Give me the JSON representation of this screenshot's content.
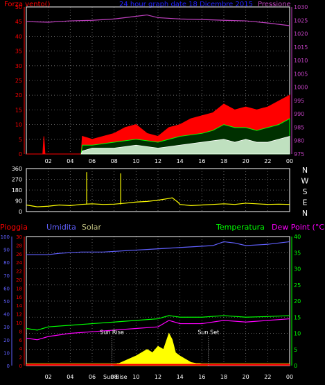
{
  "chart_data": [
    {
      "type": "line",
      "panel": "wind-pressure",
      "title": "24 hour graph date 18 Dicembre 2015",
      "left_label": "Forza vento()",
      "right_label": "Pressione",
      "x_ticks": [
        "02",
        "04",
        "06",
        "08",
        "10",
        "12",
        "14",
        "16",
        "18",
        "20",
        "22",
        "00"
      ],
      "y_left_ticks": [
        0,
        5,
        10,
        15,
        20,
        25,
        30,
        35,
        40,
        45,
        50
      ],
      "y_left_range": [
        0,
        50
      ],
      "y_right_ticks": [
        975,
        980,
        985,
        990,
        995,
        1000,
        1005,
        1010,
        1015,
        1020,
        1025,
        1030
      ],
      "y_right_range": [
        975,
        1030
      ],
      "grid": "dotted",
      "colors": {
        "gust": "#ff0000",
        "wind": "#00ff00",
        "avg": "#ffffff",
        "pressure": "#c040c0",
        "axis": "#ff0000",
        "axis_right": "#c040c0"
      },
      "series": [
        {
          "name": "pressure",
          "points": [
            [
              0,
              1024.5
            ],
            [
              2,
              1024.3
            ],
            [
              4,
              1024.8
            ],
            [
              6,
              1025
            ],
            [
              8,
              1025.5
            ],
            [
              10,
              1026.5
            ],
            [
              11,
              1027
            ],
            [
              12,
              1026
            ],
            [
              14,
              1025.5
            ],
            [
              16,
              1025.3
            ],
            [
              18,
              1025
            ],
            [
              20,
              1024.8
            ],
            [
              22,
              1024
            ],
            [
              24,
              1023
            ]
          ]
        },
        {
          "name": "gust",
          "points": [
            [
              0,
              0
            ],
            [
              1.5,
              0
            ],
            [
              1.6,
              6
            ],
            [
              1.7,
              0
            ],
            [
              5,
              0
            ],
            [
              5.1,
              6
            ],
            [
              6,
              5
            ],
            [
              7,
              6
            ],
            [
              8,
              7
            ],
            [
              9,
              9
            ],
            [
              10,
              10
            ],
            [
              11,
              7
            ],
            [
              12,
              6
            ],
            [
              13,
              9
            ],
            [
              14,
              10
            ],
            [
              15,
              12
            ],
            [
              16,
              13
            ],
            [
              17,
              14
            ],
            [
              18,
              17
            ],
            [
              19,
              15
            ],
            [
              20,
              16
            ],
            [
              21,
              15
            ],
            [
              22,
              16
            ],
            [
              23,
              18
            ],
            [
              24,
              20
            ]
          ]
        },
        {
          "name": "wind",
          "points": [
            [
              5,
              0
            ],
            [
              5.1,
              3
            ],
            [
              6,
              3
            ],
            [
              8,
              4
            ],
            [
              10,
              5
            ],
            [
              12,
              4
            ],
            [
              14,
              6
            ],
            [
              16,
              7
            ],
            [
              17,
              8
            ],
            [
              18,
              10
            ],
            [
              19,
              9
            ],
            [
              20,
              9
            ],
            [
              21,
              8
            ],
            [
              22,
              9
            ],
            [
              23,
              10
            ],
            [
              24,
              12
            ]
          ]
        },
        {
          "name": "avg",
          "points": [
            [
              5,
              0
            ],
            [
              5.1,
              1
            ],
            [
              6,
              2
            ],
            [
              8,
              2
            ],
            [
              10,
              3
            ],
            [
              12,
              2
            ],
            [
              14,
              3
            ],
            [
              16,
              4
            ],
            [
              18,
              5
            ],
            [
              19,
              4
            ],
            [
              20,
              5
            ],
            [
              21,
              4
            ],
            [
              22,
              4
            ],
            [
              23,
              5
            ],
            [
              24,
              6
            ]
          ]
        }
      ]
    },
    {
      "type": "line",
      "panel": "direction",
      "y_ticks": [
        0,
        90,
        180,
        270,
        360
      ],
      "y_range": [
        0,
        360
      ],
      "direction_labels": [
        "N",
        "W",
        "S",
        "E",
        "N"
      ],
      "colors": {
        "line": "#ffff00",
        "axis": "#ffffff"
      },
      "spikes": [
        [
          5.5,
          330
        ],
        [
          8.6,
          320
        ]
      ],
      "points": [
        [
          0,
          55
        ],
        [
          1,
          40
        ],
        [
          2,
          45
        ],
        [
          3,
          55
        ],
        [
          4,
          50
        ],
        [
          5,
          60
        ],
        [
          6,
          65
        ],
        [
          7,
          60
        ],
        [
          8,
          62
        ],
        [
          9,
          70
        ],
        [
          10,
          80
        ],
        [
          11,
          85
        ],
        [
          12,
          95
        ],
        [
          13,
          110
        ],
        [
          13.3,
          115
        ],
        [
          13.8,
          80
        ],
        [
          14,
          60
        ],
        [
          15,
          50
        ],
        [
          16,
          55
        ],
        [
          17,
          60
        ],
        [
          18,
          65
        ],
        [
          19,
          60
        ],
        [
          20,
          70
        ],
        [
          21,
          65
        ],
        [
          22,
          60
        ],
        [
          23,
          62
        ],
        [
          24,
          60
        ]
      ]
    },
    {
      "type": "line",
      "panel": "rain-humidity-temp",
      "labels": {
        "rain": "Pioggia",
        "humidity": "Umidita",
        "solar": "Solar",
        "temperature": "Temperatura",
        "dewpoint": "Dew Point (°C)"
      },
      "y_rain_ticks": [
        0,
        2,
        4,
        6,
        8,
        10,
        12,
        14,
        16,
        18,
        20,
        22,
        24,
        26,
        28,
        30
      ],
      "y_humidity_ticks": [
        0,
        10,
        20,
        30,
        40,
        50,
        60,
        70,
        80,
        90,
        100
      ],
      "y_temp_ticks": [
        0,
        5,
        10,
        15,
        20,
        25,
        30,
        35,
        40
      ],
      "y_temp_range": [
        0,
        40
      ],
      "annotations": [
        {
          "text": "Sun Rise",
          "x": 7.8
        },
        {
          "text": "Sun Set",
          "x": 16.6
        }
      ],
      "overlap_label": "Sun Bise",
      "colors": {
        "rain": "#ff0000",
        "humidity": "#6060ff",
        "solar": "#ffff00",
        "temperature": "#00ff00",
        "dewpoint": "#ff00ff",
        "temp_axis": "#00ff00",
        "rain_axis": "#ff0000",
        "hum_axis": "#6060ff"
      },
      "series": [
        {
          "name": "humidity",
          "points": [
            [
              0,
              86
            ],
            [
              2,
              86
            ],
            [
              3,
              87
            ],
            [
              5,
              88
            ],
            [
              7,
              88
            ],
            [
              9,
              89
            ],
            [
              11,
              90
            ],
            [
              13,
              91
            ],
            [
              15,
              92
            ],
            [
              17,
              93
            ],
            [
              18,
              96
            ],
            [
              19,
              95
            ],
            [
              20,
              93
            ],
            [
              22,
              94
            ],
            [
              24,
              96
            ]
          ]
        },
        {
          "name": "temperature",
          "points": [
            [
              0,
              11.5
            ],
            [
              1,
              11
            ],
            [
              2,
              12
            ],
            [
              4,
              12.5
            ],
            [
              6,
              13
            ],
            [
              8,
              13.5
            ],
            [
              10,
              14
            ],
            [
              12,
              14.5
            ],
            [
              13,
              15.5
            ],
            [
              14,
              15
            ],
            [
              16,
              15
            ],
            [
              18,
              15.5
            ],
            [
              20,
              15
            ],
            [
              22,
              15.2
            ],
            [
              24,
              15.5
            ]
          ]
        },
        {
          "name": "dewpoint",
          "points": [
            [
              0,
              8.5
            ],
            [
              1,
              8
            ],
            [
              2,
              9
            ],
            [
              4,
              10
            ],
            [
              6,
              10.5
            ],
            [
              8,
              11
            ],
            [
              10,
              11.5
            ],
            [
              12,
              12
            ],
            [
              13,
              14
            ],
            [
              14,
              13
            ],
            [
              16,
              13
            ],
            [
              18,
              14
            ],
            [
              20,
              13.5
            ],
            [
              22,
              14
            ],
            [
              24,
              14.5
            ]
          ]
        },
        {
          "name": "solar",
          "points": [
            [
              8,
              0
            ],
            [
              9,
              1.5
            ],
            [
              10,
              3
            ],
            [
              11,
              5
            ],
            [
              11.5,
              4
            ],
            [
              12,
              6
            ],
            [
              12.5,
              5
            ],
            [
              13,
              10
            ],
            [
              13.3,
              8
            ],
            [
              13.6,
              4
            ],
            [
              14,
              3
            ],
            [
              15,
              1
            ],
            [
              16.5,
              0
            ]
          ]
        }
      ]
    }
  ]
}
